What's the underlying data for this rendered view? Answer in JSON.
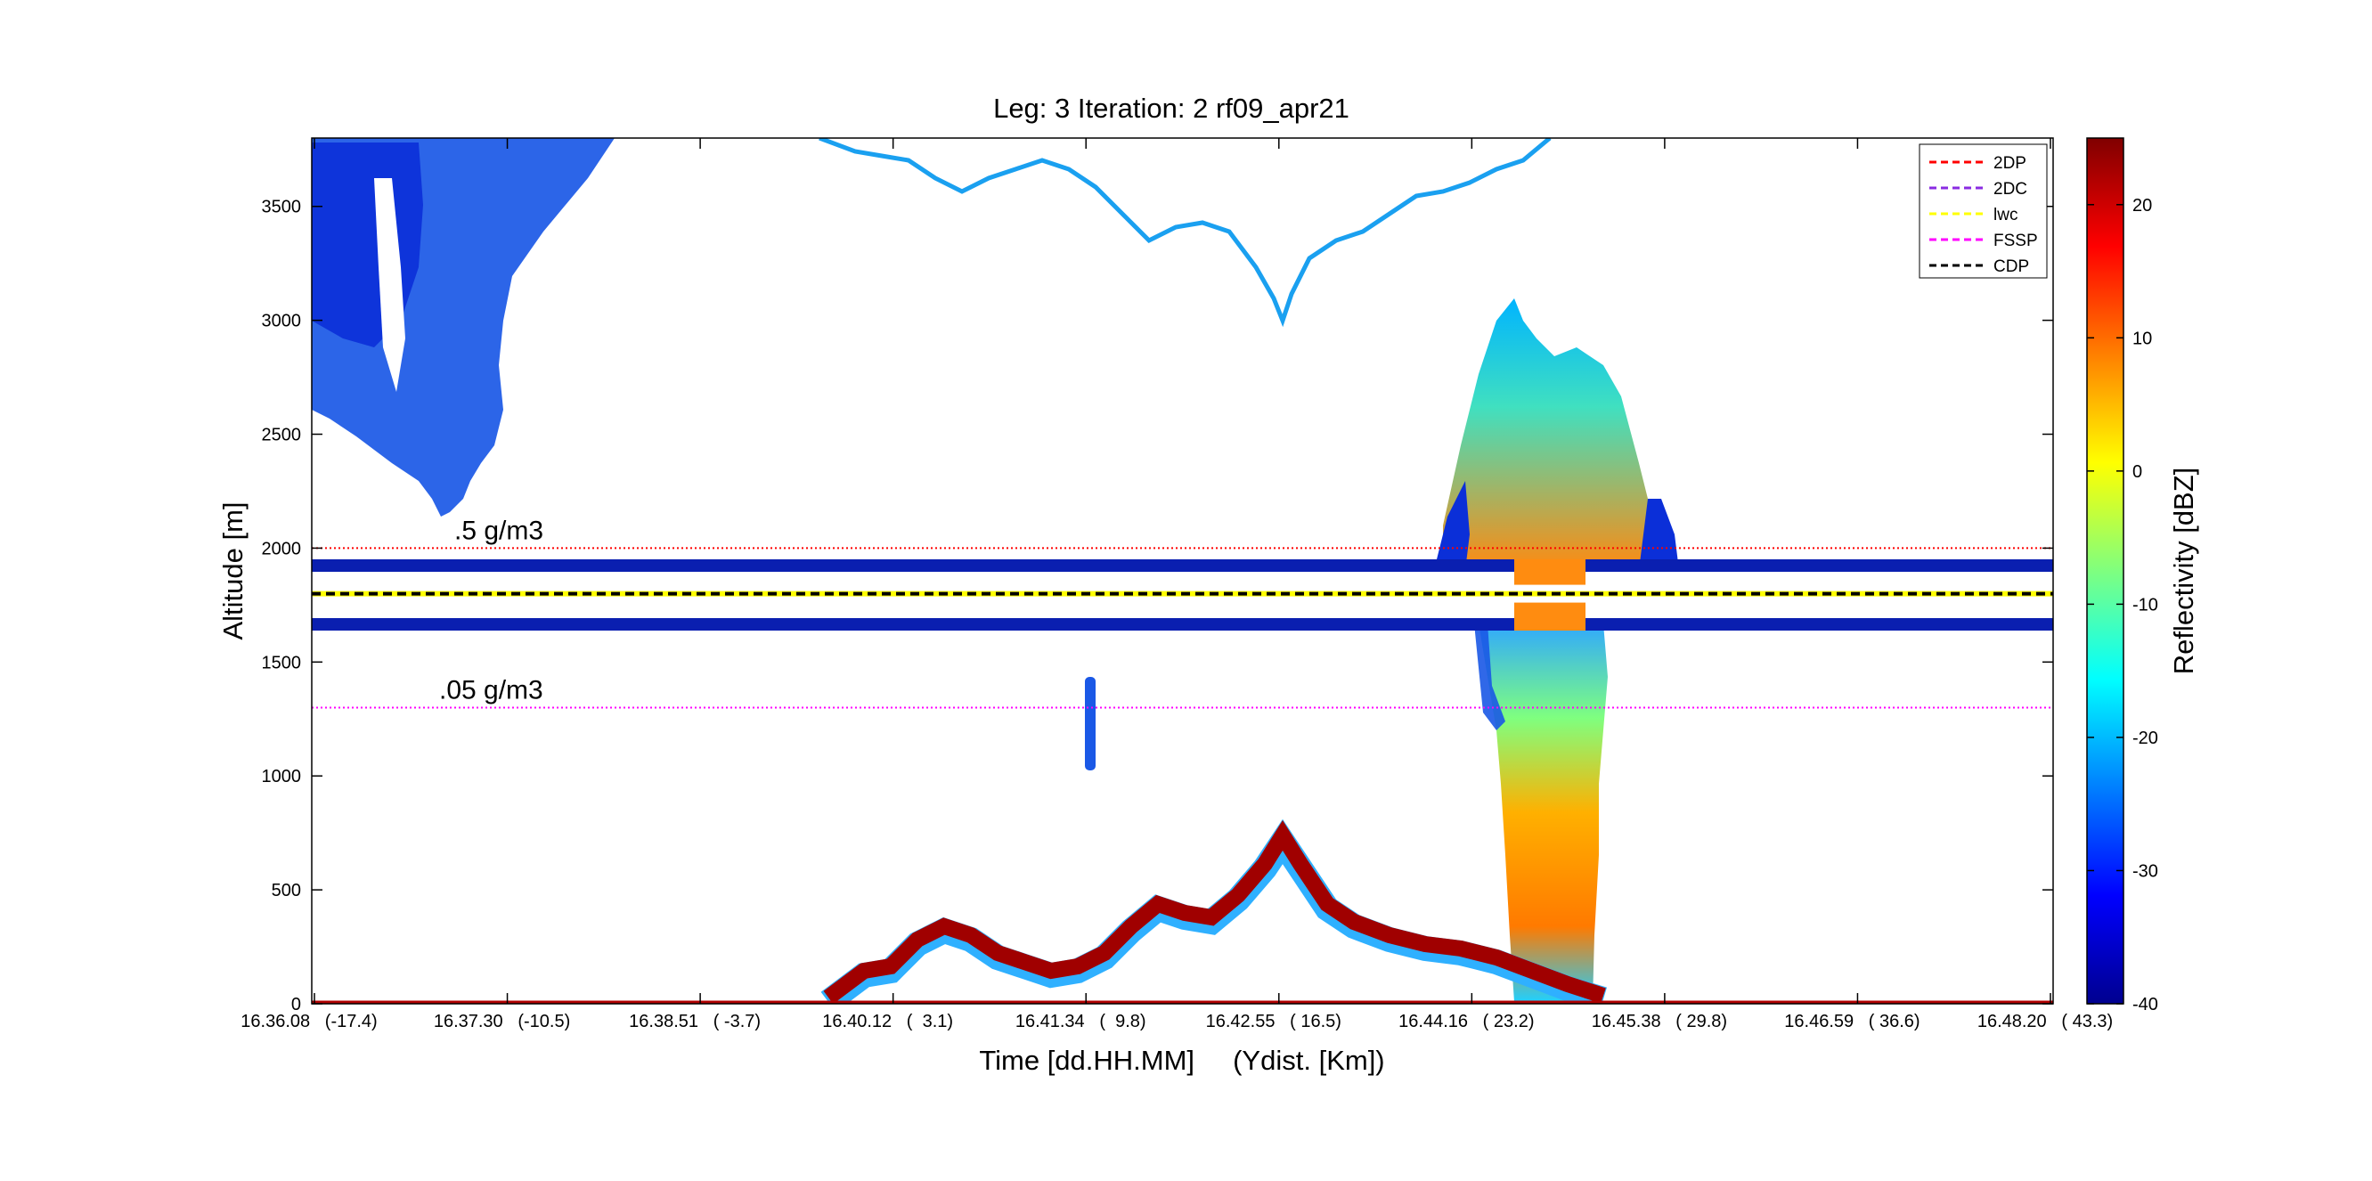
{
  "chart_data": {
    "type": "heatmap",
    "title": "Leg: 3  Iteration: 2  rf09_apr21",
    "xlabel": "Time [dd.HH.MM]     (Ydist. [Km])",
    "ylabel": "Altitude [m]",
    "ylim": [
      0,
      3800
    ],
    "yticks": [
      0,
      500,
      1000,
      1500,
      2000,
      2500,
      3000,
      3500
    ],
    "xticks": [
      "16.36.08   (-17.4)",
      "16.37.30   (-10.5)",
      "16.38.51   ( -3.7)",
      "16.40.12   (  3.1)",
      "16.41.34   (  9.8)",
      "16.42.55   ( 16.5)",
      "16.44.16   ( 23.2)",
      "16.45.38   ( 29.8)",
      "16.46.59   ( 36.6)",
      "16.48.20   ( 43.3)"
    ],
    "colorbar": {
      "label": "Reflectivity [dBZ]",
      "range": [
        -40,
        25
      ],
      "ticks": [
        -40,
        -30,
        -20,
        -10,
        0,
        10,
        20
      ],
      "colormap": "jet"
    },
    "legend": {
      "position": "top-right",
      "entries": [
        {
          "name": "2DP",
          "color": "#ff0000"
        },
        {
          "name": "2DC",
          "color": "#8a2be2"
        },
        {
          "name": "lwc",
          "color": "#ffff00"
        },
        {
          "name": "FSSP",
          "color": "#ff00ff"
        },
        {
          "name": "CDP",
          "color": "#000000"
        }
      ]
    },
    "reference_lines": [
      {
        "label": ".5 g/m3",
        "altitude": 2000,
        "color": "#ff0000",
        "style": "dotted"
      },
      {
        "label": ".05 g/m3",
        "altitude": 1300,
        "color": "#ff00ff",
        "style": "dotted"
      }
    ],
    "flight_altitude": 1800,
    "grid": false
  }
}
